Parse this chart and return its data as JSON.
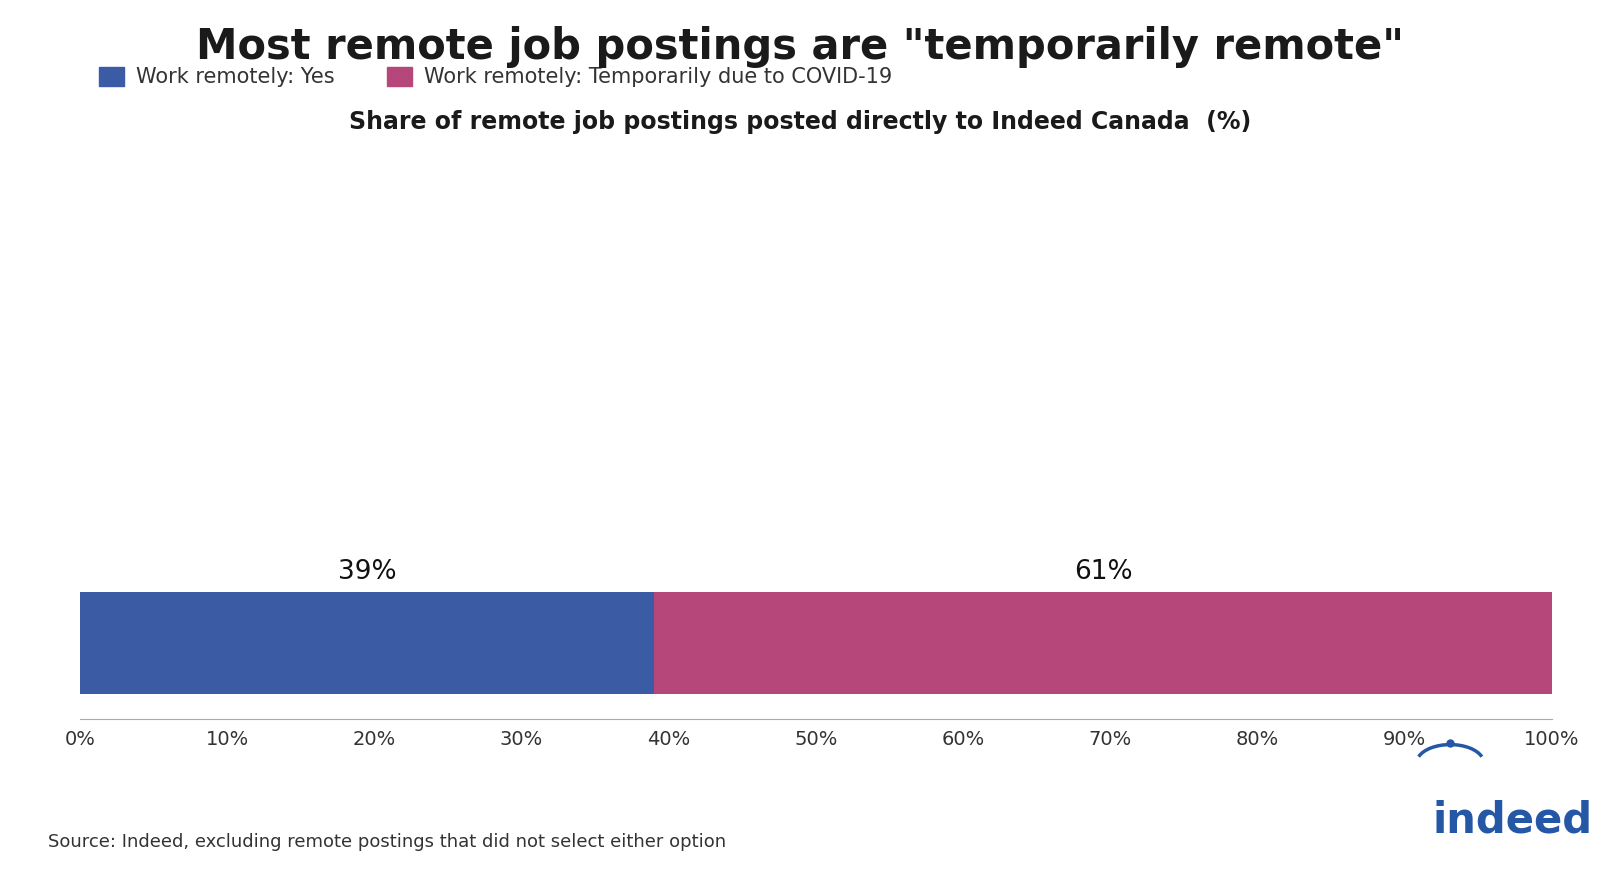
{
  "title": "Most remote job postings are \"temporarily remote\"",
  "subtitle": "Share of remote job postings posted directly to Indeed Canada  (%)",
  "legend_labels": [
    "Work remotely: Yes",
    "Work remotely: Temporarily due to COVID-19"
  ],
  "legend_colors": [
    "#3B5BA5",
    "#B5477A"
  ],
  "bar_values": [
    39,
    61
  ],
  "bar_colors": [
    "#3B5BA5",
    "#B5477A"
  ],
  "bar_labels": [
    "39%",
    "61%"
  ],
  "xlim": [
    0,
    100
  ],
  "xtick_values": [
    0,
    10,
    20,
    30,
    40,
    50,
    60,
    70,
    80,
    90,
    100
  ],
  "xtick_labels": [
    "0%",
    "10%",
    "20%",
    "30%",
    "40%",
    "50%",
    "60%",
    "70%",
    "80%",
    "90%",
    "100%"
  ],
  "source_text": "Source: Indeed, excluding remote postings that did not select either option",
  "title_fontsize": 30,
  "subtitle_fontsize": 17,
  "label_fontsize": 19,
  "legend_fontsize": 15,
  "tick_fontsize": 14,
  "source_fontsize": 13,
  "background_color": "#ffffff",
  "indeed_color": "#2557A7",
  "title_color": "#1a1a1a",
  "subtitle_color": "#1a1a1a",
  "tick_color": "#333333",
  "source_color": "#333333"
}
